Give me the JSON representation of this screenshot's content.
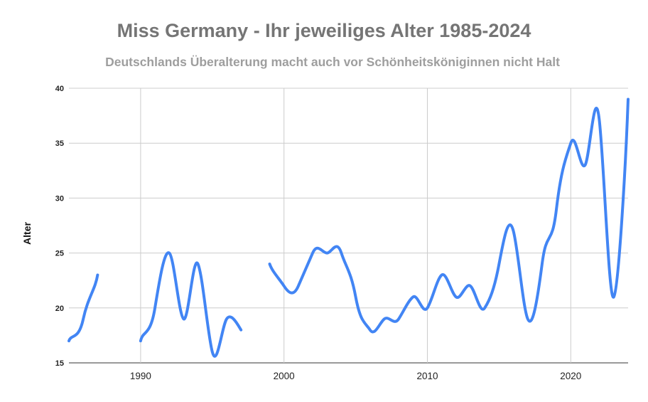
{
  "chart_data": {
    "type": "line",
    "title": "Miss Germany - Ihr jeweiliges Alter 1985-2024",
    "subtitle": "Deutschlands Überalterung macht auch vor Schönheitsköniginnen nicht Halt",
    "xlabel": "",
    "ylabel": "Alter",
    "xlim": [
      1985,
      2024
    ],
    "ylim": [
      15,
      40
    ],
    "x_ticks": [
      "1990",
      "2000",
      "2010",
      "2020"
    ],
    "y_ticks": [
      "15",
      "20",
      "25",
      "30",
      "35",
      "40"
    ],
    "grid": true,
    "smooth": true,
    "color": "#4285f4",
    "x": [
      1985,
      1986,
      1987,
      1988,
      1989,
      1990,
      1991,
      1992,
      1993,
      1994,
      1995,
      1996,
      1997,
      1998,
      1999,
      2000,
      2001,
      2002,
      2003,
      2004,
      2005,
      2006,
      2007,
      2008,
      2009,
      2010,
      2011,
      2012,
      2013,
      2014,
      2015,
      2016,
      2017,
      2018,
      2019,
      2020,
      2021,
      2022,
      2023,
      2024
    ],
    "values": [
      17,
      19,
      23,
      null,
      null,
      17,
      20,
      25,
      19,
      24,
      16,
      19,
      18,
      null,
      24,
      22,
      22,
      25,
      25,
      25,
      21,
      18,
      19,
      19,
      21,
      20,
      23,
      21,
      22,
      20,
      24,
      27,
      19,
      24,
      29,
      35,
      33,
      37,
      21,
      39
    ]
  }
}
